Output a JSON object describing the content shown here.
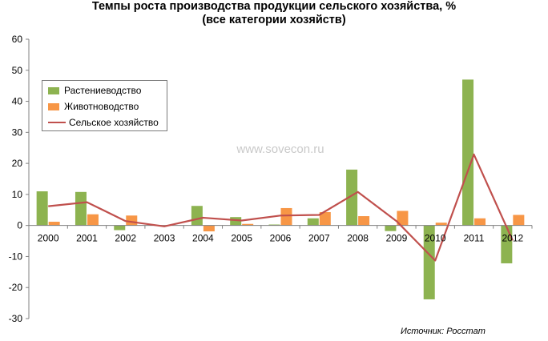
{
  "title_line1": "Темпы роста производства продукции сельского хозяйства, %",
  "title_line2": "(все категории хозяйств)",
  "watermark": "www.sovecon.ru",
  "source": "Источник: Росстат",
  "colors": {
    "plants": "#8db350",
    "livestock": "#f79646",
    "agriculture": "#c0504d",
    "axis": "#808080"
  },
  "chart_data": {
    "type": "bar",
    "categories": [
      "2000",
      "2001",
      "2002",
      "2003",
      "2004",
      "2005",
      "2006",
      "2007",
      "2008",
      "2009",
      "2010",
      "2011",
      "2012"
    ],
    "series": [
      {
        "name": "Растениеводство",
        "type": "bar",
        "values": [
          11,
          10.8,
          -1.5,
          0,
          6.3,
          2.7,
          0.3,
          2.3,
          18,
          -1.8,
          -23.8,
          47,
          -12.2
        ]
      },
      {
        "name": "Животноводство",
        "type": "bar",
        "values": [
          1.2,
          3.6,
          3.2,
          0,
          -1.9,
          0.5,
          5.6,
          4.3,
          3,
          4.7,
          0.9,
          2.3,
          3.4
        ]
      },
      {
        "name": "Сельское хозяйство",
        "type": "line",
        "values": [
          6.2,
          7.5,
          1.4,
          -0.3,
          2.5,
          1.6,
          3.2,
          3.4,
          10.8,
          1.4,
          -11.3,
          22.9,
          -4.8
        ]
      }
    ],
    "ylim": [
      -30,
      60
    ],
    "yticks": [
      -30,
      -20,
      -10,
      0,
      10,
      20,
      30,
      40,
      50,
      60
    ],
    "grid": false,
    "legend": "upper-left"
  }
}
